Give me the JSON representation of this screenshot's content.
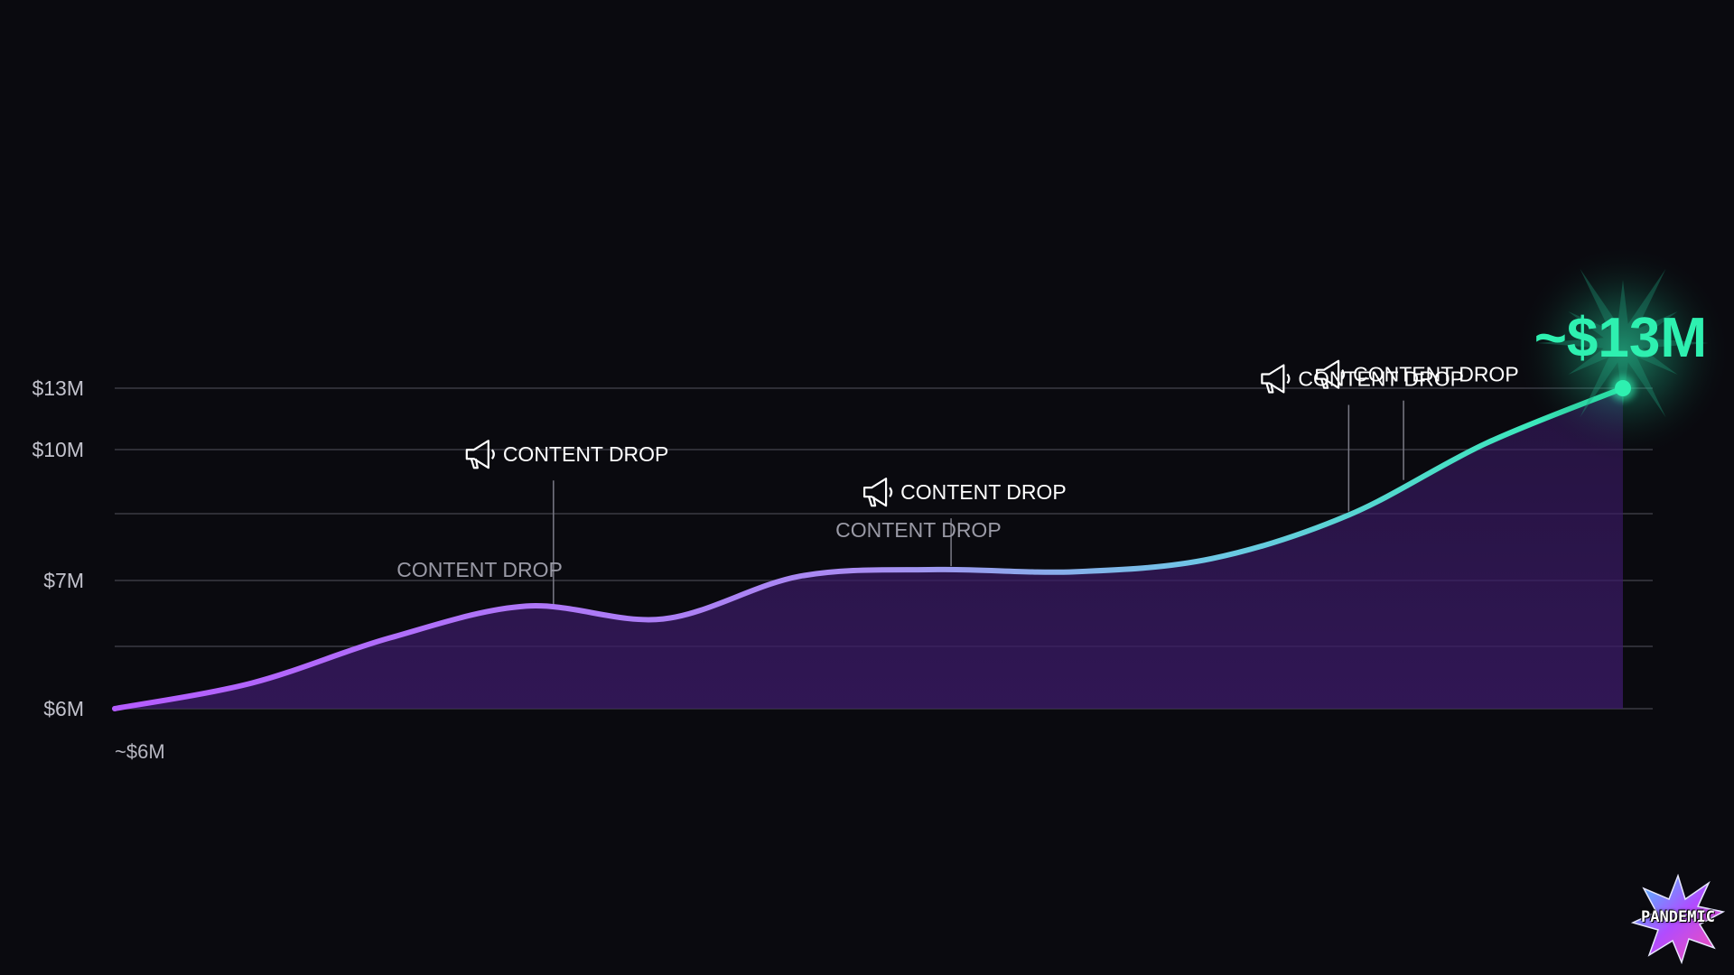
{
  "chart_data": {
    "type": "area",
    "title": "",
    "xlabel": "",
    "ylabel": "",
    "ylim": [
      6,
      13
    ],
    "y_ticks": [
      {
        "value": 6,
        "label": "$6M"
      },
      {
        "value": 7,
        "label": "$7M"
      },
      {
        "value": 10,
        "label": "$10M"
      },
      {
        "value": 13,
        "label": "$13M"
      }
    ],
    "grid": true,
    "series": [
      {
        "values": [
          6.0,
          6.2,
          6.55,
          6.8,
          6.7,
          7.1,
          7.25,
          7.2,
          7.5,
          8.5,
          10.3,
          13.0
        ]
      }
    ],
    "start_label": "~$6M",
    "end_label": "~$13M",
    "annotations": [
      {
        "index": 3.2,
        "label": "CONTENT DROP",
        "icon": "megaphone-icon",
        "style": "primary"
      },
      {
        "index": 2.9,
        "label": "CONTENT DROP",
        "style": "ghost"
      },
      {
        "index": 6.1,
        "label": "CONTENT DROP",
        "icon": "megaphone-icon",
        "style": "primary"
      },
      {
        "index": 6.1,
        "label": "CONTENT DROP",
        "style": "ghost"
      },
      {
        "index": 9.0,
        "label": "CONTENT DROP",
        "icon": "megaphone-icon",
        "style": "primary"
      },
      {
        "index": 9.4,
        "label": "CONTENT DROP",
        "icon": "megaphone-icon",
        "style": "primary"
      }
    ],
    "colors": {
      "line_start": "#b45cff",
      "line_mid": "#8fa0f0",
      "line_end": "#2ef0b0",
      "fill": "#3a1a66",
      "grid": "#3a3a44",
      "background": "#0a0a0f"
    }
  },
  "logo": {
    "text": "PANDEMIC"
  }
}
